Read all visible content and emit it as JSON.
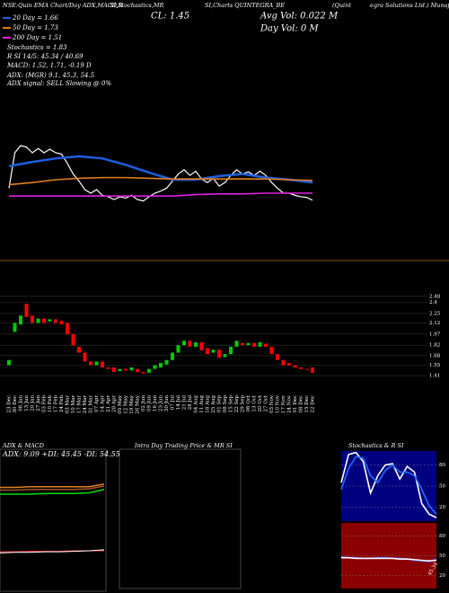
{
  "header": {
    "title_parts": [
      "NSE:Quin EMA Chart/Day ADX,MACD,R",
      "SI,Stochastics,MR",
      "SI,Charts QUINTEGRA_BE",
      "(Quint",
      "egra Solutions Ltd.) MunafaSutra.com"
    ],
    "close": "CL: 1.45",
    "avg_vol": "Avg Vol: 0.022  M",
    "day_vol": "Day Vol: 0  M",
    "stats": [
      "20 Day = 1.66",
      "50 Day = 1.73",
      "200 Day = 1.51",
      "Stochastics = 1.83",
      "R          SI 14/5: 45.34 / 40.69",
      "MACD: 1.52, 1.71, -0.19 D"
    ],
    "adx_lines": [
      "ADX:              (MGR) 9.1, 45.3, 54.5",
      "ADX  signal: SELL  Slowing @ 0%"
    ]
  },
  "chart_data": [
    {
      "type": "candlestick",
      "categories": [
        "23 Dec",
        "30 Dec",
        "06 Jan",
        "13 Jan",
        "20 Jan",
        "27 Jan",
        "03 Feb",
        "10 Feb",
        "17 Feb",
        "24 Feb",
        "03 Mar",
        "10 Mar",
        "17 Mar",
        "24 Mar",
        "31 Mar",
        "07 Apr",
        "14 Apr",
        "21 Apr",
        "28 Apr",
        "05 May",
        "12 May",
        "19 May",
        "26 May",
        "02 Jun",
        "09 Jun",
        "16 Jun",
        "23 Jun",
        "30 Jun",
        "07 Jul",
        "14 Jul",
        "21 Jul",
        "28 Jul",
        "04 Aug",
        "11 Aug",
        "18 Aug",
        "25 Aug",
        "01 Sep",
        "08 Sep",
        "15 Sep",
        "22 Sep",
        "29 Sep",
        "06 Oct",
        "13 Oct",
        "20 Oct",
        "27 Oct",
        "03 Nov",
        "10 Nov",
        "17 Nov",
        "24 Nov",
        "01 Dec",
        "08 Dec",
        "15 Dec",
        "22 Dec"
      ],
      "open": [
        1.55,
        2.0,
        2.1,
        2.38,
        2.22,
        2.12,
        2.18,
        2.14,
        2.17,
        2.15,
        2.12,
        1.97,
        1.8,
        1.72,
        1.6,
        1.55,
        1.6,
        1.52,
        1.52,
        1.47,
        1.5,
        1.48,
        1.5,
        1.46,
        1.45,
        1.5,
        1.52,
        1.56,
        1.62,
        1.72,
        1.82,
        1.88,
        1.8,
        1.86,
        1.78,
        1.72,
        1.76,
        1.66,
        1.7,
        1.8,
        1.85,
        1.82,
        1.85,
        1.8,
        1.84,
        1.8,
        1.7,
        1.62,
        1.58,
        1.55,
        1.52,
        1.5,
        1.52
      ],
      "close": [
        1.62,
        2.12,
        2.22,
        2.2,
        2.12,
        2.18,
        2.12,
        2.17,
        2.12,
        2.1,
        1.97,
        1.82,
        1.72,
        1.6,
        1.55,
        1.6,
        1.52,
        1.5,
        1.46,
        1.5,
        1.48,
        1.52,
        1.46,
        1.44,
        1.5,
        1.55,
        1.58,
        1.62,
        1.72,
        1.82,
        1.88,
        1.8,
        1.86,
        1.75,
        1.7,
        1.76,
        1.65,
        1.7,
        1.8,
        1.88,
        1.82,
        1.85,
        1.8,
        1.86,
        1.8,
        1.7,
        1.62,
        1.55,
        1.55,
        1.52,
        1.5,
        1.49,
        1.45
      ],
      "up_color": "#00cc00",
      "down_color": "#ff0000",
      "ylim": [
        1.35,
        2.55
      ],
      "yticks": [
        2.48,
        2.4,
        2.25,
        2.12,
        1.97,
        1.82,
        1.68,
        1.55,
        1.41
      ],
      "grid": true,
      "overlay": {
        "ylim": [
          0.6,
          2.5
        ],
        "price_color": "#ffffff",
        "series": [
          {
            "color": "#1e5fe0",
            "x": [
              0,
              4,
              8,
              12,
              16,
              20,
              24,
              28,
              32,
              36,
              40,
              44,
              48,
              52
            ],
            "values": [
              1.93,
              1.99,
              2.04,
              2.07,
              2.04,
              1.95,
              1.84,
              1.74,
              1.74,
              1.79,
              1.82,
              1.77,
              1.74,
              1.7
            ]
          },
          {
            "color": "#e08020",
            "x": [
              0,
              4,
              8,
              12,
              16,
              20,
              24,
              28,
              32,
              36,
              40,
              44,
              48,
              52
            ],
            "values": [
              1.67,
              1.7,
              1.74,
              1.76,
              1.77,
              1.77,
              1.76,
              1.75,
              1.75,
              1.75,
              1.75,
              1.75,
              1.74,
              1.73
            ]
          },
          {
            "color": "#e020e0",
            "x": [
              0,
              4,
              8,
              12,
              16,
              20,
              24,
              28,
              32,
              36,
              40,
              44,
              48,
              52
            ],
            "values": [
              1.51,
              1.51,
              1.51,
              1.51,
              1.51,
              1.51,
              1.51,
              1.51,
              1.53,
              1.54,
              1.54,
              1.55,
              1.55,
              1.55
            ]
          }
        ]
      }
    },
    {
      "type": "line",
      "title": "ADX  & MACD",
      "label": "ADX: 9.09  +DI: 45.45  -DI: 54.55",
      "ylim": [
        0,
        100
      ],
      "series": [
        {
          "color": "#e08020",
          "values": [
            50,
            50,
            51,
            51,
            51,
            51,
            51,
            55
          ]
        },
        {
          "color": "#00dd00",
          "values": [
            40,
            40,
            40,
            41,
            41,
            41,
            42,
            47
          ]
        },
        {
          "color": "#a0522d",
          "values": [
            46,
            46,
            47,
            47,
            47,
            47,
            48,
            52
          ]
        }
      ],
      "macd": {
        "ylim": [
          -2,
          4
        ],
        "series": [
          {
            "color": "#ff3030",
            "values": [
              1.5,
              1.5,
              1.55,
              1.55,
              1.55,
              1.6,
              1.6,
              1.6
            ]
          },
          {
            "color": "#ffffff",
            "values": [
              1.4,
              1.45,
              1.45,
              1.5,
              1.5,
              1.55,
              1.6,
              1.7
            ]
          }
        ]
      }
    },
    {
      "type": "empty",
      "title": "Intra  Day Trading Price  & MR    SI"
    },
    {
      "type": "line",
      "title": "Stochastics & R    SI",
      "ylim": [
        0,
        100
      ],
      "yticks": [
        80,
        50,
        20
      ],
      "background": "#000080",
      "series": [
        {
          "color": "#ffffff",
          "values": [
            55,
            95,
            98,
            85,
            40,
            65,
            80,
            82,
            60,
            78,
            70,
            25,
            10,
            5
          ]
        },
        {
          "color": "#2070ff",
          "values": [
            45,
            75,
            92,
            90,
            65,
            55,
            72,
            80,
            70,
            70,
            65,
            45,
            22,
            10
          ]
        }
      ]
    },
    {
      "type": "line",
      "ylim": [
        0,
        100
      ],
      "yticks": [
        80,
        50,
        20
      ],
      "background": "#8b0000",
      "annotation": "45.34",
      "series": [
        {
          "color": "#3050ff",
          "values": [
            48,
            47,
            47,
            46,
            46,
            47,
            47,
            46,
            46,
            45,
            43,
            42,
            41,
            45
          ]
        },
        {
          "color": "#ffffff",
          "values": [
            47,
            47,
            46,
            46,
            46,
            46,
            46,
            46,
            45,
            45,
            44,
            43,
            42,
            43
          ]
        }
      ]
    }
  ]
}
